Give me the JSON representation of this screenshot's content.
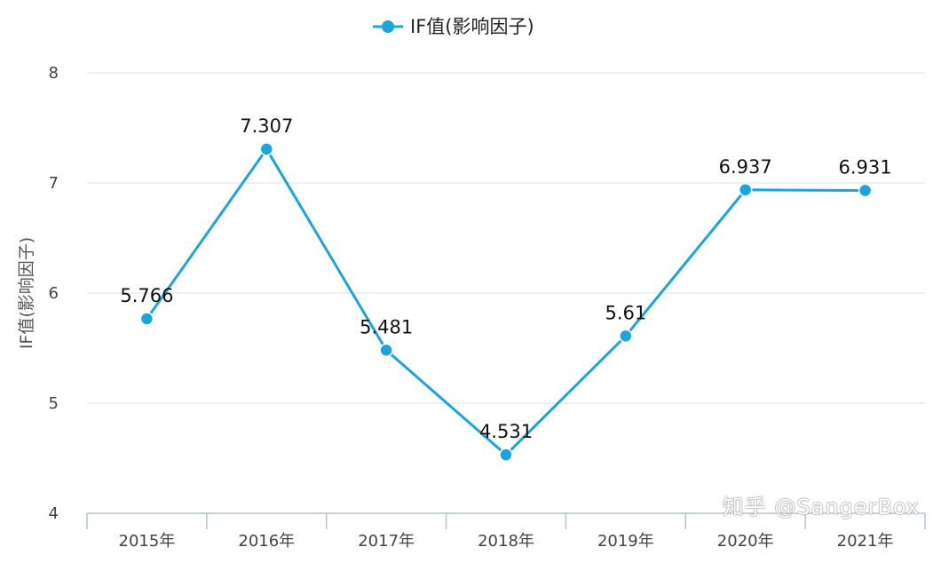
{
  "chart_data": {
    "type": "line",
    "categories": [
      "2015年",
      "2016年",
      "2017年",
      "2018年",
      "2019年",
      "2020年",
      "2021年"
    ],
    "series": [
      {
        "name": "IF值(影响因子)",
        "values": [
          5.766,
          7.307,
          5.481,
          4.531,
          5.61,
          6.937,
          6.931
        ],
        "labels": [
          "5.766",
          "7.307",
          "5.481",
          "4.531",
          "5.61",
          "6.937",
          "6.931"
        ]
      }
    ],
    "ylabel": "IF值(影响因子)",
    "ylim": [
      4,
      8
    ],
    "yticks": [
      "4",
      "5",
      "6",
      "7",
      "8"
    ],
    "grid": true,
    "legend_position": "top-center"
  },
  "colors": {
    "line": "#1aa6dc",
    "grid": "#dde3ea",
    "axis": "#b8c2cc"
  },
  "watermark": "知乎 @SangerBox"
}
